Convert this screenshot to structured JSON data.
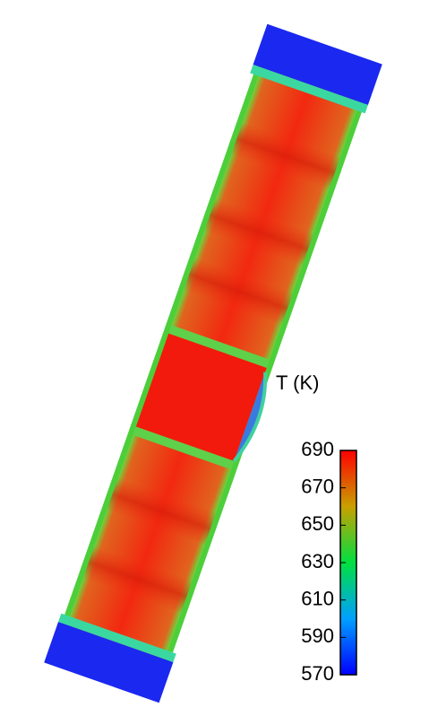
{
  "colorbar": {
    "label": "T (K)",
    "range": [
      570,
      690
    ],
    "ticks": [
      570,
      590,
      610,
      630,
      650,
      670,
      690
    ]
  }
}
